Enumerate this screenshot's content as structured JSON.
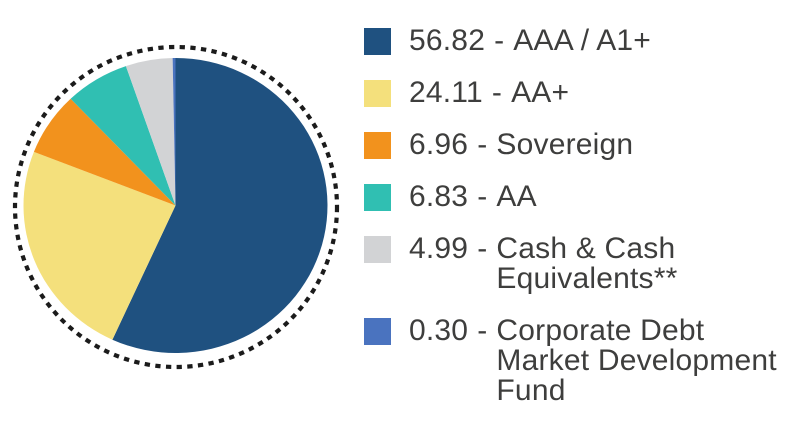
{
  "chart_data": {
    "type": "pie",
    "title": "",
    "legend_position": "right",
    "start_angle_deg": 0,
    "direction": "clockwise",
    "background": "#ffffff",
    "text_color": "#3e3e3d",
    "border_style": "dotted-circle",
    "border_color": "#1b1b1b",
    "separator": "-",
    "slices": [
      {
        "value": 56.82,
        "display": "56.82",
        "label": "AAA / A1+",
        "label_wrapped": "AAA / A1+",
        "color": "#1f5180"
      },
      {
        "value": 24.11,
        "display": "24.11",
        "label": "AA+",
        "label_wrapped": "AA+",
        "color": "#f4e07c"
      },
      {
        "value": 6.96,
        "display": "6.96",
        "label": "Sovereign",
        "label_wrapped": "Sovereign",
        "color": "#f2921d"
      },
      {
        "value": 6.83,
        "display": "6.83",
        "label": "AA",
        "label_wrapped": "AA",
        "color": "#30bfb2"
      },
      {
        "value": 4.99,
        "display": "4.99",
        "label": "Cash & Cash Equivalents**",
        "label_wrapped": "Cash & Cash\nEquivalents**",
        "color": "#d2d3d5"
      },
      {
        "value": 0.3,
        "display": "0.30",
        "label": "Corporate Debt Market Development Fund",
        "label_wrapped": "Corporate Debt\nMarket Development\nFund",
        "color": "#4a73bf"
      }
    ]
  }
}
